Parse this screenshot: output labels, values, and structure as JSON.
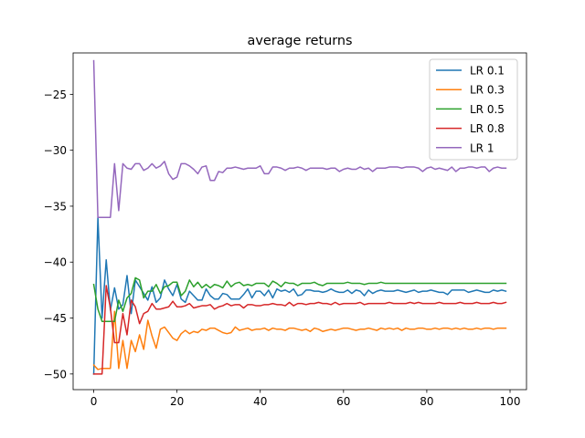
{
  "chart_data": {
    "type": "line",
    "title": "average returns",
    "xlabel": "",
    "ylabel": "",
    "xlim": [
      -4.95,
      103.95
    ],
    "ylim": [
      -51.4,
      -21.3
    ],
    "xticks": [
      0,
      20,
      40,
      60,
      80,
      100
    ],
    "yticks": [
      -50,
      -45,
      -40,
      -35,
      -30,
      -25
    ],
    "xtick_labels": [
      "0",
      "20",
      "40",
      "60",
      "80",
      "100"
    ],
    "ytick_labels": [
      "−50",
      "−45",
      "−40",
      "−35",
      "−30",
      "−25"
    ],
    "grid": false,
    "legend_position": "top-right",
    "x": [
      0,
      1,
      2,
      3,
      4,
      5,
      6,
      7,
      8,
      9,
      10,
      11,
      12,
      13,
      14,
      15,
      16,
      17,
      18,
      19,
      20,
      21,
      22,
      23,
      24,
      25,
      26,
      27,
      28,
      29,
      30,
      31,
      32,
      33,
      34,
      35,
      36,
      37,
      38,
      39,
      40,
      41,
      42,
      43,
      44,
      45,
      46,
      47,
      48,
      49,
      50,
      51,
      52,
      53,
      54,
      55,
      56,
      57,
      58,
      59,
      60,
      61,
      62,
      63,
      64,
      65,
      66,
      67,
      68,
      69,
      70,
      71,
      72,
      73,
      74,
      75,
      76,
      77,
      78,
      79,
      80,
      81,
      82,
      83,
      84,
      85,
      86,
      87,
      88,
      89,
      90,
      91,
      92,
      93,
      94,
      95,
      96,
      97,
      98,
      99
    ],
    "series": [
      {
        "name": "LR 0.1",
        "color": "#1f77b4",
        "values": [
          -50.0,
          -36.0,
          -45.0,
          -39.8,
          -44.3,
          -42.3,
          -44.2,
          -43.8,
          -41.2,
          -44.6,
          -41.6,
          -42.2,
          -42.8,
          -43.4,
          -42.2,
          -43.6,
          -43.2,
          -41.6,
          -42.4,
          -43.0,
          -42.0,
          -43.3,
          -43.6,
          -42.6,
          -43.0,
          -43.4,
          -43.4,
          -42.4,
          -43.0,
          -43.3,
          -43.3,
          -42.8,
          -42.9,
          -43.3,
          -43.3,
          -43.3,
          -42.9,
          -42.4,
          -43.2,
          -42.6,
          -42.6,
          -43.0,
          -42.5,
          -43.2,
          -42.4,
          -42.6,
          -42.5,
          -42.7,
          -42.4,
          -43.0,
          -42.9,
          -42.5,
          -42.5,
          -42.6,
          -42.6,
          -42.7,
          -42.6,
          -42.4,
          -42.6,
          -42.7,
          -42.7,
          -42.5,
          -42.8,
          -42.5,
          -42.6,
          -43.0,
          -42.5,
          -42.8,
          -42.6,
          -42.5,
          -42.6,
          -42.6,
          -42.6,
          -42.5,
          -42.6,
          -42.7,
          -42.6,
          -42.5,
          -42.7,
          -42.6,
          -42.6,
          -42.5,
          -42.6,
          -42.7,
          -42.7,
          -42.9,
          -42.5,
          -42.5,
          -42.5,
          -42.5,
          -42.7,
          -42.6,
          -42.5,
          -42.6,
          -42.7,
          -42.7,
          -42.5,
          -42.6,
          -42.5,
          -42.6
        ]
      },
      {
        "name": "LR 0.3",
        "color": "#ff7f0e",
        "values": [
          -49.2,
          -49.6,
          -49.5,
          -49.5,
          -49.5,
          -44.4,
          -49.5,
          -47.0,
          -49.5,
          -47.0,
          -48.0,
          -46.5,
          -47.8,
          -45.2,
          -46.6,
          -47.7,
          -46.0,
          -45.8,
          -46.3,
          -46.8,
          -47.0,
          -46.4,
          -46.1,
          -46.4,
          -46.2,
          -46.3,
          -46.0,
          -46.1,
          -45.9,
          -45.9,
          -46.1,
          -46.3,
          -46.4,
          -46.3,
          -45.8,
          -46.1,
          -46.0,
          -45.9,
          -46.1,
          -46.0,
          -46.0,
          -45.9,
          -46.1,
          -45.9,
          -46.0,
          -46.0,
          -46.1,
          -45.9,
          -45.9,
          -46.0,
          -46.1,
          -46.0,
          -46.2,
          -45.9,
          -46.0,
          -46.2,
          -46.1,
          -46.0,
          -46.1,
          -46.0,
          -45.9,
          -45.9,
          -46.0,
          -46.1,
          -46.0,
          -46.0,
          -45.9,
          -46.0,
          -46.1,
          -45.9,
          -46.0,
          -45.9,
          -46.0,
          -45.9,
          -46.1,
          -45.9,
          -46.0,
          -46.0,
          -45.9,
          -45.9,
          -46.0,
          -46.0,
          -45.9,
          -46.0,
          -45.9,
          -45.9,
          -46.0,
          -45.9,
          -46.0,
          -45.9,
          -46.0,
          -46.0,
          -45.9,
          -46.0,
          -45.9,
          -45.9,
          -46.0,
          -45.9,
          -45.9,
          -45.9
        ]
      },
      {
        "name": "LR 0.5",
        "color": "#2ca02c",
        "values": [
          -42.0,
          -44.2,
          -45.3,
          -45.3,
          -45.3,
          -45.3,
          -43.4,
          -44.4,
          -43.2,
          -42.8,
          -41.4,
          -41.6,
          -43.2,
          -42.6,
          -42.6,
          -42.0,
          -42.8,
          -42.2,
          -42.1,
          -41.8,
          -41.8,
          -43.0,
          -42.6,
          -41.6,
          -42.2,
          -41.8,
          -42.3,
          -42.0,
          -42.3,
          -42.0,
          -42.1,
          -42.3,
          -41.7,
          -42.2,
          -41.9,
          -41.8,
          -42.1,
          -42.0,
          -42.1,
          -41.9,
          -41.9,
          -41.9,
          -42.2,
          -41.7,
          -41.9,
          -42.2,
          -41.8,
          -41.9,
          -41.9,
          -42.1,
          -41.9,
          -41.9,
          -41.9,
          -41.8,
          -42.0,
          -42.1,
          -41.9,
          -41.9,
          -41.9,
          -41.9,
          -41.9,
          -41.8,
          -41.9,
          -41.9,
          -41.9,
          -42.0,
          -41.9,
          -41.9,
          -41.9,
          -41.8,
          -41.9,
          -41.9,
          -41.9,
          -41.9,
          -41.9,
          -41.9,
          -41.9,
          -41.9,
          -41.9,
          -41.9,
          -41.9,
          -41.9,
          -41.9,
          -41.9,
          -41.9,
          -41.9,
          -41.9,
          -41.9,
          -41.9,
          -41.9,
          -41.9,
          -41.9,
          -41.9,
          -41.9,
          -41.9,
          -41.9,
          -41.9,
          -41.9,
          -41.9,
          -41.9
        ]
      },
      {
        "name": "LR 0.8",
        "color": "#d62728",
        "values": [
          -50.0,
          -50.0,
          -50.0,
          -42.1,
          -44.1,
          -47.2,
          -47.2,
          -44.6,
          -46.5,
          -43.4,
          -44.0,
          -45.5,
          -44.6,
          -44.4,
          -43.7,
          -44.2,
          -44.2,
          -44.1,
          -44.0,
          -43.5,
          -44.0,
          -44.0,
          -43.9,
          -43.7,
          -44.1,
          -44.0,
          -43.9,
          -43.9,
          -43.8,
          -44.2,
          -44.0,
          -43.9,
          -43.7,
          -43.9,
          -43.8,
          -43.8,
          -44.1,
          -43.8,
          -43.8,
          -43.9,
          -43.9,
          -43.8,
          -43.8,
          -43.7,
          -43.8,
          -43.8,
          -43.9,
          -43.6,
          -43.9,
          -43.7,
          -43.7,
          -43.8,
          -43.7,
          -43.7,
          -43.6,
          -43.7,
          -43.7,
          -43.8,
          -43.6,
          -43.8,
          -43.7,
          -43.7,
          -43.7,
          -43.7,
          -43.6,
          -43.8,
          -43.7,
          -43.7,
          -43.7,
          -43.7,
          -43.7,
          -43.6,
          -43.7,
          -43.7,
          -43.7,
          -43.7,
          -43.6,
          -43.7,
          -43.6,
          -43.7,
          -43.7,
          -43.7,
          -43.7,
          -43.6,
          -43.7,
          -43.7,
          -43.7,
          -43.7,
          -43.6,
          -43.7,
          -43.7,
          -43.7,
          -43.6,
          -43.7,
          -43.7,
          -43.7,
          -43.6,
          -43.7,
          -43.7,
          -43.6
        ]
      },
      {
        "name": "LR 1",
        "color": "#9467bd",
        "values": [
          -22.0,
          -36.0,
          -36.0,
          -36.0,
          -36.0,
          -31.2,
          -35.4,
          -31.2,
          -31.6,
          -31.7,
          -31.2,
          -31.2,
          -31.8,
          -31.6,
          -31.2,
          -31.6,
          -31.4,
          -31.0,
          -32.1,
          -32.6,
          -32.4,
          -31.2,
          -31.2,
          -31.4,
          -31.7,
          -32.1,
          -31.5,
          -31.4,
          -32.7,
          -32.7,
          -31.9,
          -32.0,
          -31.6,
          -31.6,
          -31.5,
          -31.6,
          -31.7,
          -31.6,
          -31.6,
          -31.6,
          -31.4,
          -32.1,
          -32.1,
          -31.5,
          -31.5,
          -31.6,
          -31.8,
          -31.6,
          -31.6,
          -31.5,
          -31.6,
          -31.8,
          -31.6,
          -31.6,
          -31.6,
          -31.6,
          -31.7,
          -31.6,
          -31.6,
          -31.9,
          -31.7,
          -31.6,
          -31.7,
          -31.7,
          -31.5,
          -31.7,
          -31.6,
          -31.9,
          -31.6,
          -31.6,
          -31.6,
          -31.5,
          -31.5,
          -31.5,
          -31.6,
          -31.5,
          -31.5,
          -31.5,
          -31.6,
          -31.9,
          -31.6,
          -31.5,
          -31.7,
          -31.6,
          -31.7,
          -31.8,
          -31.5,
          -31.9,
          -31.6,
          -31.6,
          -31.5,
          -31.5,
          -31.6,
          -31.5,
          -31.5,
          -31.9,
          -31.6,
          -31.5,
          -31.6,
          -31.6
        ]
      }
    ]
  }
}
